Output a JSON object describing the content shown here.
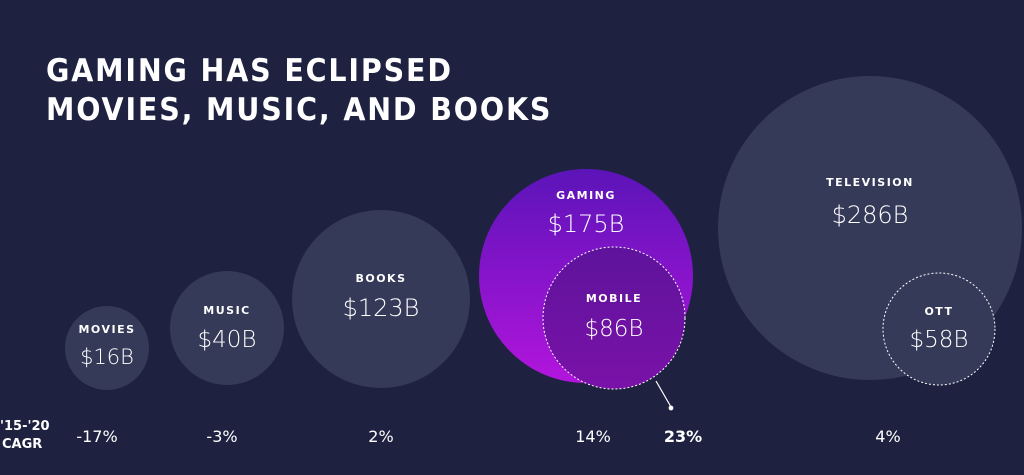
{
  "chart_data": {
    "type": "bubble",
    "title": [
      "GAMING HAS ECLIPSED",
      "MOVIES, MUSIC, AND BOOKS"
    ],
    "value_unit": "USD billions",
    "cagr_header": [
      "'15-'20",
      "CAGR"
    ],
    "bubbles": [
      {
        "id": "movies",
        "name": "MOVIES",
        "value": 16,
        "value_label": "$16B",
        "cagr": "-17%"
      },
      {
        "id": "music",
        "name": "MUSIC",
        "value": 40,
        "value_label": "$40B",
        "cagr": "-3%"
      },
      {
        "id": "books",
        "name": "BOOKS",
        "value": 123,
        "value_label": "$123B",
        "cagr": "2%"
      },
      {
        "id": "gaming",
        "name": "GAMING",
        "value": 175,
        "value_label": "$175B",
        "cagr": "14%",
        "highlight": true,
        "sub": {
          "id": "mobile",
          "name": "MOBILE",
          "value": 86,
          "value_label": "$86B",
          "cagr": "23%"
        }
      },
      {
        "id": "television",
        "name": "TELEVISION",
        "value": 286,
        "value_label": "$286B",
        "cagr": "4%",
        "sub": {
          "id": "ott",
          "name": "OTT",
          "value": 58,
          "value_label": "$58B"
        }
      }
    ]
  },
  "colors": {
    "background": "#1e2240",
    "bubble": "#353a58",
    "gaming_top": "#5b14b8",
    "gaming_bottom": "#b215dc",
    "mobile_top": "#5e139c",
    "mobile_bottom": "#7a12a8",
    "text": "#ffffff"
  }
}
